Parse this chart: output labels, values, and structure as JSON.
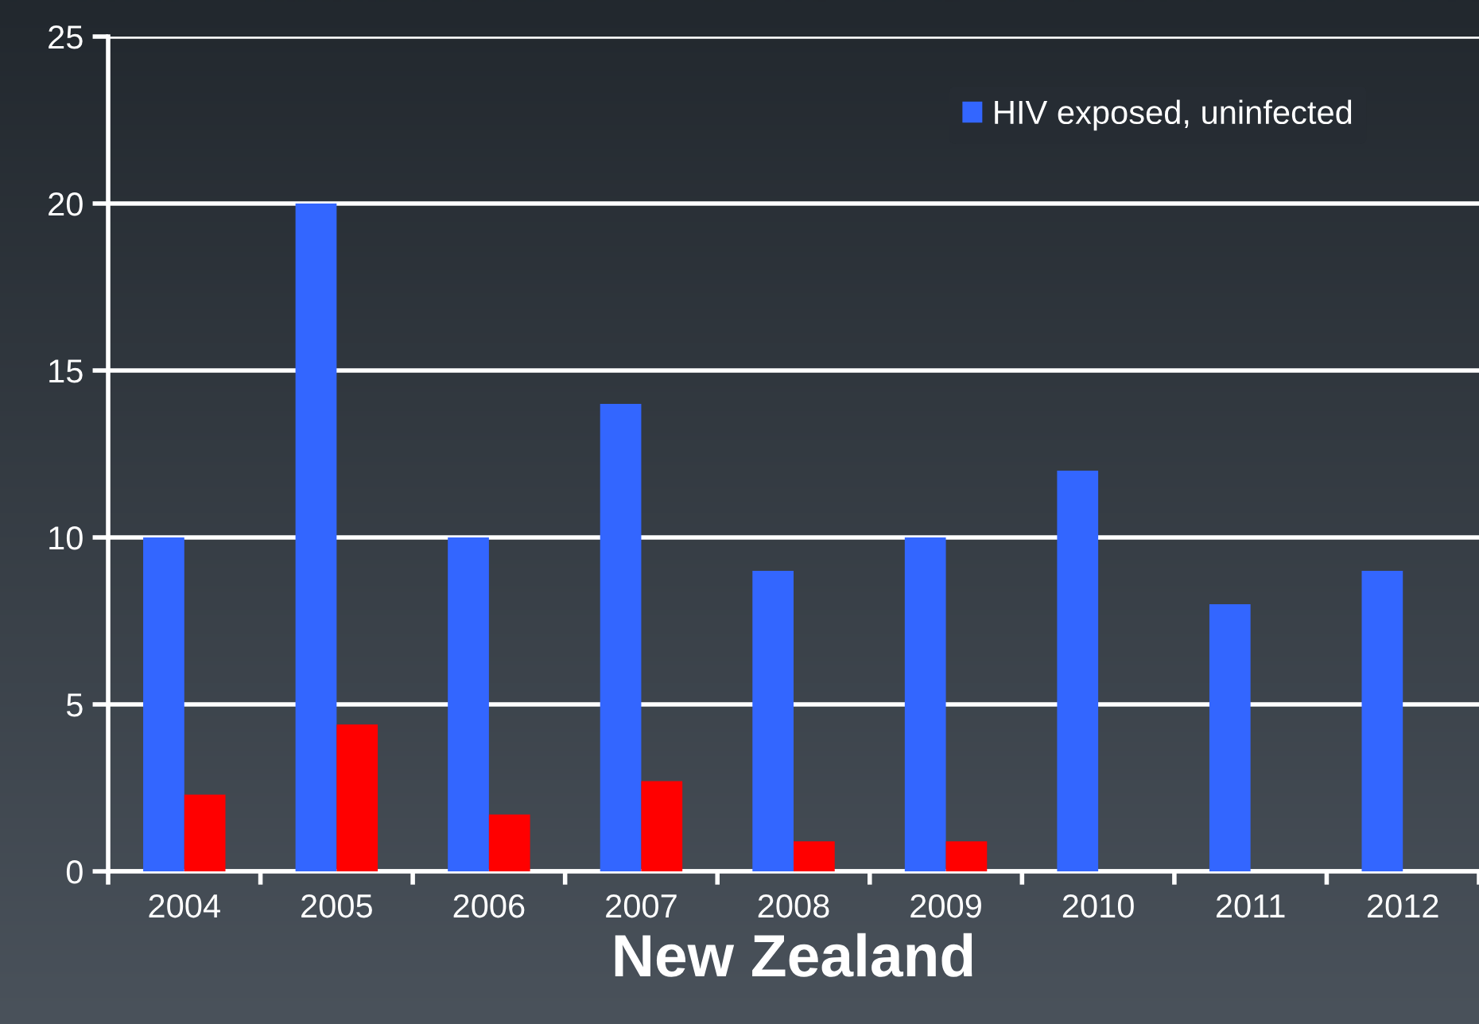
{
  "chart_data": {
    "type": "bar",
    "xlabel": "New Zealand",
    "categories": [
      "2004",
      "2005",
      "2006",
      "2007",
      "2008",
      "2009",
      "2010",
      "2011",
      "2012"
    ],
    "series": [
      {
        "name": "HIV exposed, uninfected",
        "color": "#3366ff",
        "values": [
          10,
          20,
          10,
          14,
          9,
          10,
          12,
          8,
          9
        ]
      },
      {
        "color": "#ff0000",
        "values": [
          2.3,
          4.4,
          1.7,
          2.7,
          0.9,
          0.9,
          null,
          null,
          null
        ]
      }
    ],
    "ylim": [
      0,
      25
    ],
    "yticks": [
      0,
      5,
      10,
      15,
      20,
      25
    ],
    "grid": "y",
    "legend": "top right"
  }
}
